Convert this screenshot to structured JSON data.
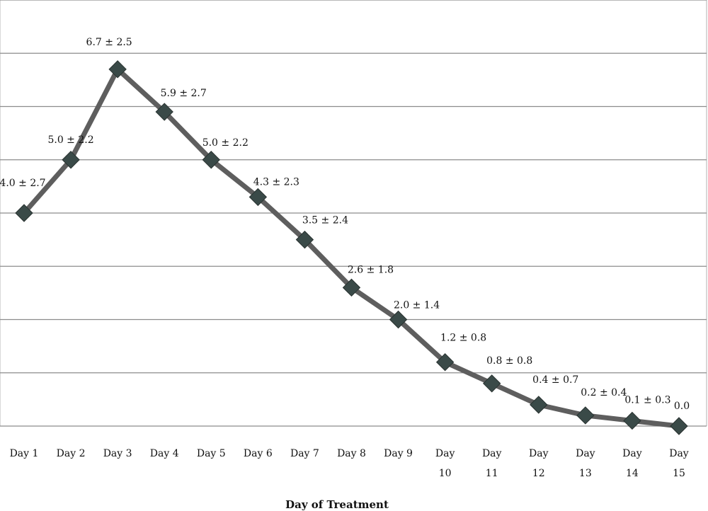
{
  "chart_data": {
    "type": "line",
    "title": "",
    "xlabel": "Day of Treatment",
    "ylabel": "",
    "categories": [
      "Day 1",
      "Day 2",
      "Day 3",
      "Day 4",
      "Day 5",
      "Day 6",
      "Day 7",
      "Day 8",
      "Day 9",
      "Day 10",
      "Day 11",
      "Day 12",
      "Day 13",
      "Day 14",
      "Day 15"
    ],
    "tick_label_lines": [
      [
        "Day 1"
      ],
      [
        "Day 2"
      ],
      [
        "Day 3"
      ],
      [
        "Day 4"
      ],
      [
        "Day 5"
      ],
      [
        "Day 6"
      ],
      [
        "Day 7"
      ],
      [
        "Day 8"
      ],
      [
        "Day 9"
      ],
      [
        "Day",
        "10"
      ],
      [
        "Day",
        "11"
      ],
      [
        "Day",
        "12"
      ],
      [
        "Day",
        "13"
      ],
      [
        "Day",
        "14"
      ],
      [
        "Day",
        "15"
      ]
    ],
    "values": [
      4.0,
      5.0,
      6.7,
      5.9,
      5.0,
      4.3,
      3.5,
      2.6,
      2.0,
      1.2,
      0.8,
      0.4,
      0.2,
      0.1,
      0.0
    ],
    "data_labels": [
      "4.0 ± 2.7",
      "5.0 ± 2.2",
      "6.7 ± 2.5",
      "5.9 ± 2.7",
      "5.0 ± 2.2",
      "4.3 ± 2.3",
      "3.5 ± 2.4",
      "2.6 ± 1.8",
      "2.0 ± 1.4",
      "1.2 ± 0.8",
      "0.8 ± 0.8",
      "0.4 ± 0.7",
      "0.2 ± 0.4",
      "0.1 ± 0.3",
      "0.0"
    ],
    "ylim": [
      0,
      8
    ],
    "grid": true,
    "legend": "none",
    "line_color": "#5e5e5e",
    "marker_color": "#3a4a48",
    "marker_shape": "diamond"
  }
}
